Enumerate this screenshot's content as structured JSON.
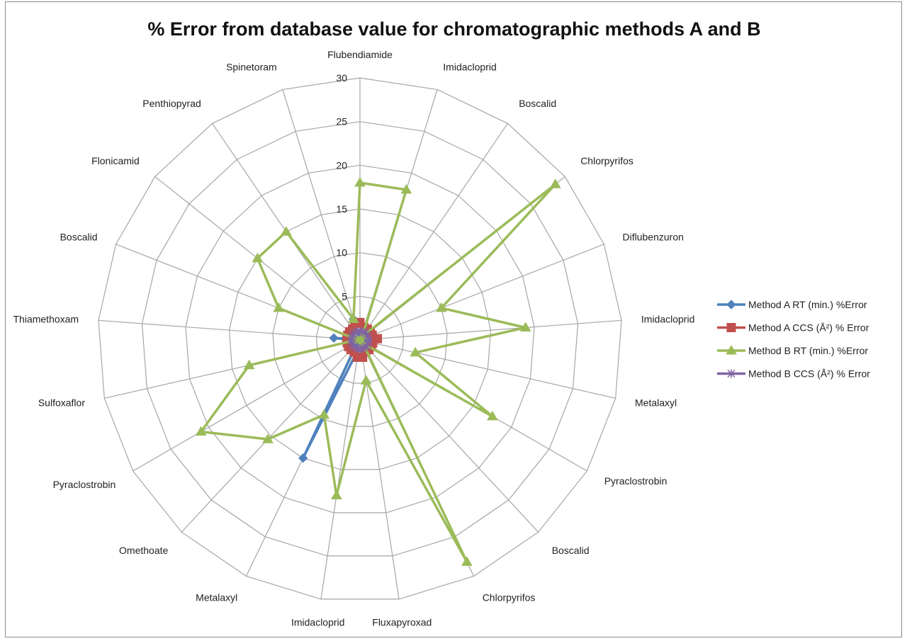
{
  "chart_data": {
    "type": "radar",
    "title": "% Error from database value for chromatographic methods A and B",
    "categories": [
      "Flubendiamide",
      "Imidacloprid",
      "Boscalid",
      "Chlorpyrifos",
      "Diflubenzuron",
      "Imidacloprid",
      "Metalaxyl",
      "Pyraclostrobin",
      "Boscalid",
      "Chlorpyrifos",
      "Fluxapyroxad",
      "Imidacloprid",
      "Metalaxyl",
      "Omethoate",
      "Pyraclostrobin",
      "Sulfoxaflor",
      "Thiamethoxam",
      "Boscalid",
      "Flonicamid",
      "Penthiopyrad",
      "Spinetoram"
    ],
    "rmin": 0,
    "rmax": 30,
    "ticks": [
      0,
      5,
      10,
      15,
      20,
      25,
      30
    ],
    "tick_labels": [
      "0",
      "5",
      "10",
      "15",
      "20",
      "25",
      "30"
    ],
    "legend_position": "right",
    "grid": true,
    "series": [
      {
        "name": "Method A RT (min.) %Error",
        "color": "#4f81bd",
        "marker": "diamond",
        "values": [
          0.3,
          0.3,
          0.3,
          0.3,
          0.3,
          0.3,
          0.3,
          0.3,
          0.3,
          0.3,
          1.0,
          1.0,
          15.0,
          0.5,
          0.3,
          0.3,
          3.0,
          0.3,
          0.3,
          0.3,
          2.5
        ]
      },
      {
        "name": "Method A CCS (Å²) % Error",
        "color": "#c0504d",
        "marker": "square",
        "values": [
          2.0,
          1.5,
          1.5,
          1.5,
          1.5,
          2.0,
          1.5,
          1.5,
          1.5,
          1.5,
          2.0,
          2.0,
          1.5,
          1.5,
          1.5,
          1.5,
          1.5,
          1.5,
          1.5,
          1.5,
          2.0
        ]
      },
      {
        "name": "Method B RT (min.) %Error",
        "color": "#9bbb59",
        "marker": "triangle",
        "values": [
          18.0,
          18.0,
          0.5,
          28.6,
          10.0,
          19.0,
          6.5,
          17.5,
          0.5,
          28.2,
          4.7,
          18.0,
          9.5,
          15.5,
          21.0,
          13.0,
          0.3,
          10.0,
          15.0,
          15.0,
          2.5
        ]
      },
      {
        "name": "Method B CCS (Å²) % Error",
        "color": "#8064a2",
        "marker": "x",
        "values": [
          1.0,
          1.0,
          1.0,
          1.0,
          1.0,
          1.0,
          1.0,
          1.0,
          1.0,
          1.0,
          1.0,
          1.0,
          1.0,
          1.0,
          1.0,
          1.0,
          1.0,
          1.0,
          1.0,
          1.0,
          1.0
        ]
      }
    ]
  }
}
